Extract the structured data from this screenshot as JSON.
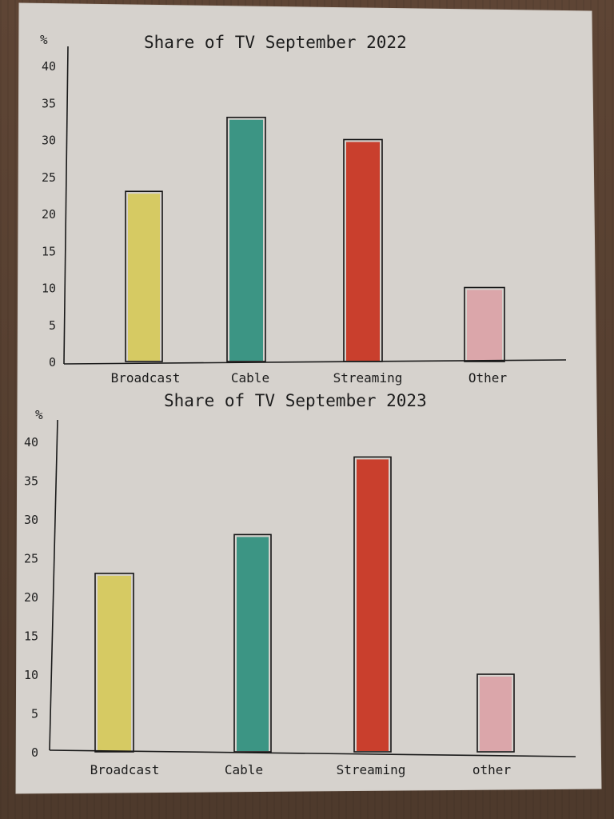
{
  "chart_data": [
    {
      "type": "bar",
      "title": "Share of TV September 2022",
      "ylabel": "%",
      "ylim": [
        0,
        40
      ],
      "yticks": [
        0,
        5,
        10,
        15,
        20,
        25,
        30,
        35,
        40
      ],
      "categories": [
        "Broadcast",
        "Cable",
        "Streaming",
        "Other"
      ],
      "values": [
        23,
        33,
        30,
        10
      ],
      "colors": [
        "#d6c95a",
        "#2f8f7e",
        "#c8321f",
        "#dba2a7"
      ],
      "grid": false
    },
    {
      "type": "bar",
      "title": "Share of TV September 2023",
      "ylabel": "%",
      "ylim": [
        0,
        40
      ],
      "yticks": [
        0,
        5,
        10,
        15,
        20,
        25,
        30,
        35,
        40
      ],
      "categories": [
        "Broadcast",
        "Cable",
        "Streaming",
        "other"
      ],
      "values": [
        23,
        28,
        38,
        10
      ],
      "colors": [
        "#d6c95a",
        "#2f8f7e",
        "#c8321f",
        "#dba2a7"
      ],
      "grid": false
    }
  ]
}
